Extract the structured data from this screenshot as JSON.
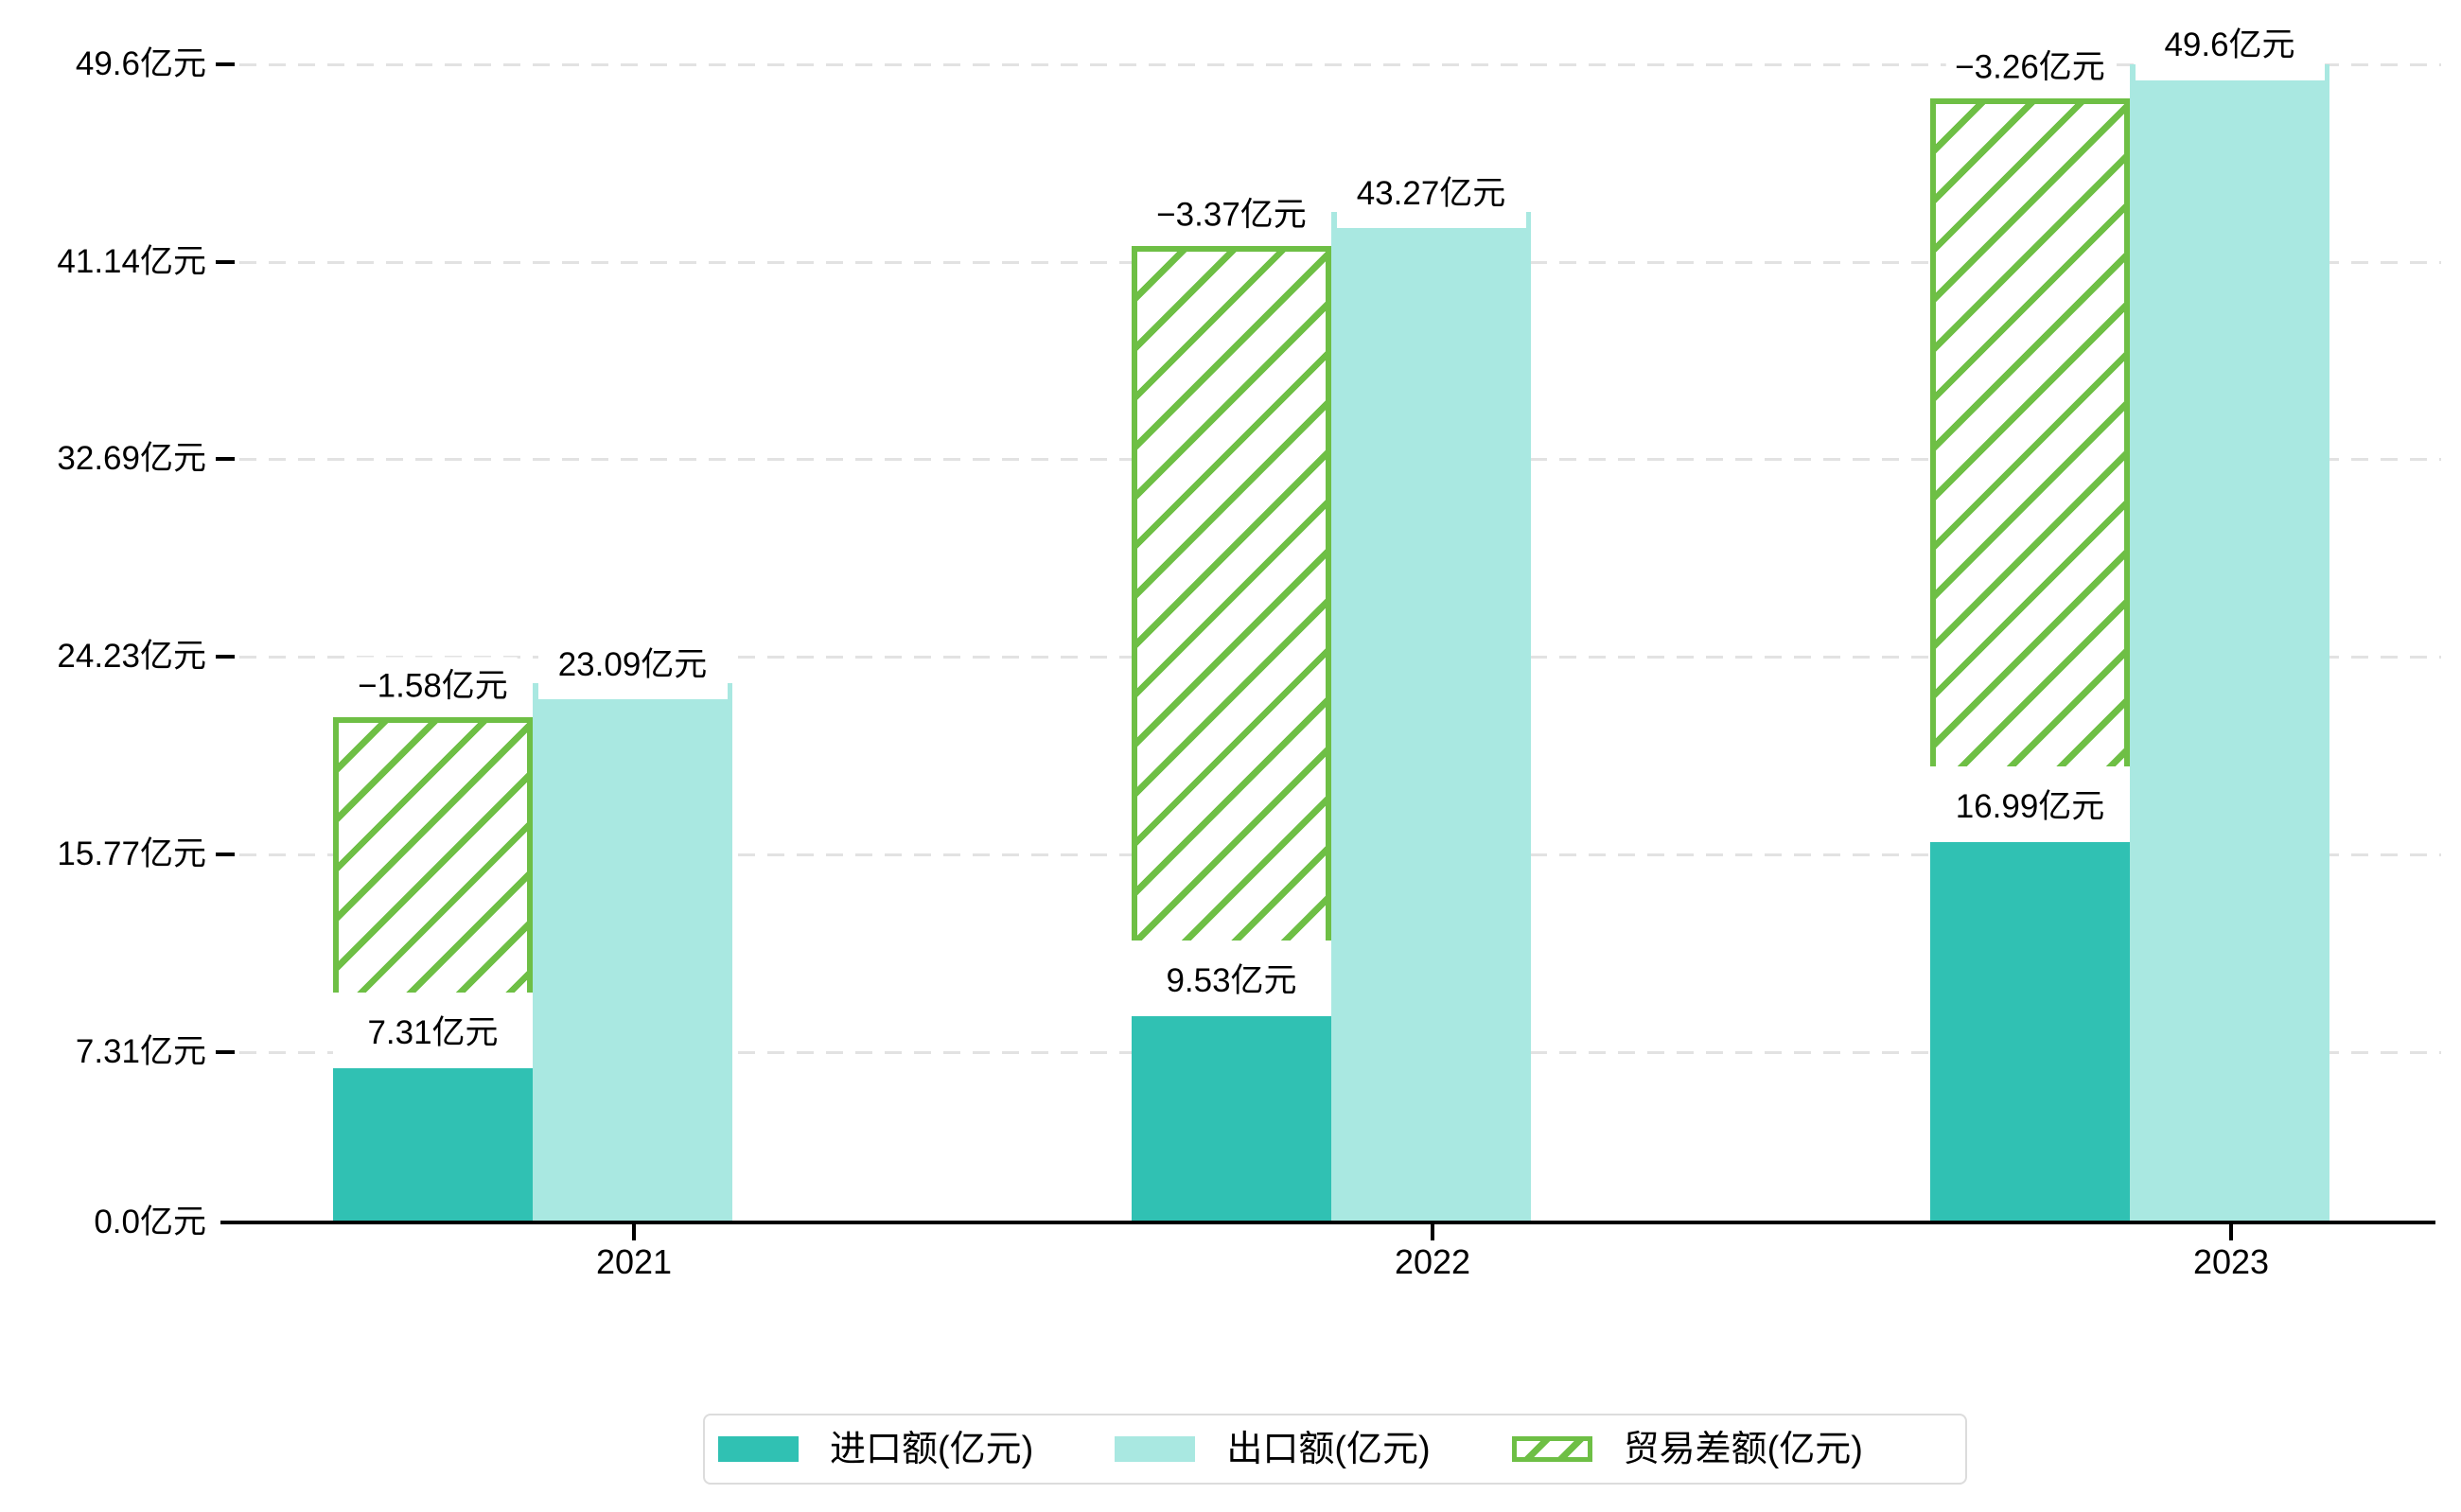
{
  "chart_data": {
    "type": "bar",
    "title": "",
    "categories": [
      "2021",
      "2022",
      "2023"
    ],
    "series": [
      {
        "name": "进口额(亿元)",
        "type": "bar",
        "color": "#30C1B3",
        "values": [
          7.31,
          9.53,
          16.99
        ],
        "data_labels": [
          "7.31亿元",
          "9.53亿元",
          "16.99亿元"
        ]
      },
      {
        "name": "出口额(亿元)",
        "type": "bar",
        "color": "#A9E8E1",
        "values": [
          23.09,
          43.27,
          49.6
        ],
        "data_labels": [
          "23.09亿元",
          "43.27亿元",
          "49.6亿元"
        ]
      },
      {
        "name": "贸易差额(亿元)",
        "type": "bar",
        "style": "white-fill-green-diagonal-hatch",
        "color": "#6EBF45",
        "values": [
          -1.58,
          -3.37,
          -3.26
        ],
        "data_labels": [
          "−1.58亿元",
          "−3.37亿元",
          "−3.26亿元"
        ],
        "drawn_as": "hatched band over import column spanning from import top to export top"
      }
    ],
    "y_ticks": [
      {
        "value": 0,
        "label": "0.0亿元"
      },
      {
        "value": 7.31,
        "label": "7.31亿元"
      },
      {
        "value": 15.77,
        "label": "15.77亿元"
      },
      {
        "value": 24.23,
        "label": "24.23亿元"
      },
      {
        "value": 32.69,
        "label": "32.69亿元"
      },
      {
        "value": 41.14,
        "label": "41.14亿元"
      },
      {
        "value": 49.6,
        "label": "49.6亿元"
      }
    ],
    "ylim": [
      0,
      49.6
    ],
    "xlabel": "",
    "ylabel": "",
    "grid": {
      "horizontal": true,
      "style": "dashed",
      "color": "#e2e2e2"
    },
    "legend_position": "bottom",
    "colors": {
      "import_bar": "#30C1B3",
      "export_bar": "#A9E8E1",
      "trade_diff_hatch": "#6EBF45",
      "axis": "#000000",
      "gridline": "#e2e2e2",
      "legend_border": "#dcdcdc",
      "background": "#ffffff"
    }
  }
}
